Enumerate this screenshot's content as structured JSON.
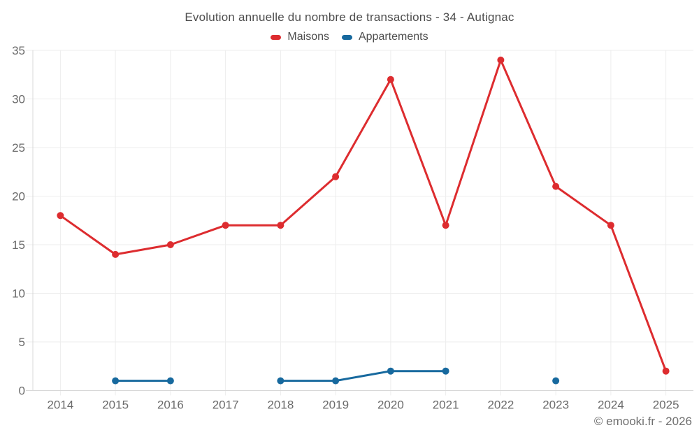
{
  "chart_data": {
    "type": "line",
    "title": "Evolution annuelle du nombre de transactions - 34 - Autignac",
    "xlabel": "",
    "ylabel": "",
    "categories": [
      "2014",
      "2015",
      "2016",
      "2017",
      "2018",
      "2019",
      "2020",
      "2021",
      "2022",
      "2023",
      "2024",
      "2025"
    ],
    "series": [
      {
        "name": "Maisons",
        "color": "#dd2c2f",
        "values": [
          18,
          14,
          15,
          17,
          17,
          22,
          32,
          17,
          34,
          21,
          17,
          2
        ]
      },
      {
        "name": "Appartements",
        "color": "#17699e",
        "values": [
          null,
          1,
          1,
          null,
          1,
          1,
          2,
          2,
          null,
          1,
          null,
          null
        ]
      }
    ],
    "ylim": [
      0,
      35
    ],
    "yticks": [
      0,
      5,
      10,
      15,
      20,
      25,
      30,
      35
    ],
    "grid": true,
    "legend_position": "top"
  },
  "footer": {
    "credit": "© emooki.fr - 2026"
  },
  "colors": {
    "background": "#ffffff",
    "grid": "#ededed",
    "axis": "#d8d8d8",
    "tick_text": "#6b6b6b",
    "title_text": "#4d4d4d",
    "footer_text": "#707070"
  }
}
